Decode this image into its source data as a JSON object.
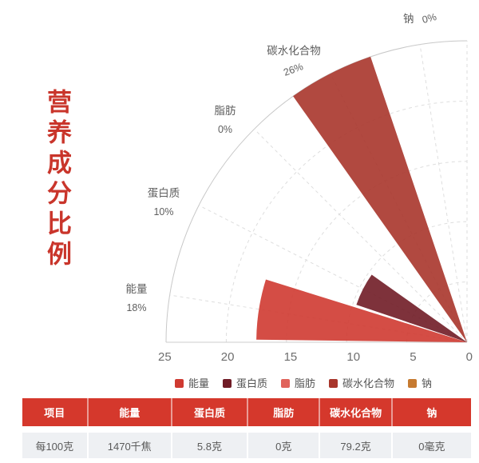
{
  "chart_data": {
    "type": "polar_rose_bar",
    "title": "营养成分比例",
    "categories": [
      "能量",
      "蛋白质",
      "脂肪",
      "碳水化合物",
      "钠"
    ],
    "percent_labels": [
      "18%",
      "10%",
      "0%",
      "26%",
      "0%"
    ],
    "values_percent": [
      17.5,
      9.7,
      0,
      26.4,
      0
    ],
    "colors": [
      "#cf3a31",
      "#701c26",
      "#e0635b",
      "#a8352b",
      "#c67a30"
    ],
    "radial_axis": {
      "ticks": [
        "25",
        "20",
        "15",
        "10",
        "5",
        "0"
      ],
      "max": 25,
      "tick_step": 5
    },
    "angular_axis": {
      "start_deg": 0,
      "end_deg": 90,
      "origin": "bottom-right"
    },
    "legend_position": "bottom-center",
    "grid": "dashed arcs and radial lines"
  },
  "table": {
    "headers": [
      "项目",
      "能量",
      "蛋白质",
      "脂肪",
      "碳水化合物",
      "钠"
    ],
    "rows": [
      [
        "每100克",
        "1470千焦",
        "5.8克",
        "0克",
        "79.2克",
        "0毫克"
      ]
    ]
  }
}
